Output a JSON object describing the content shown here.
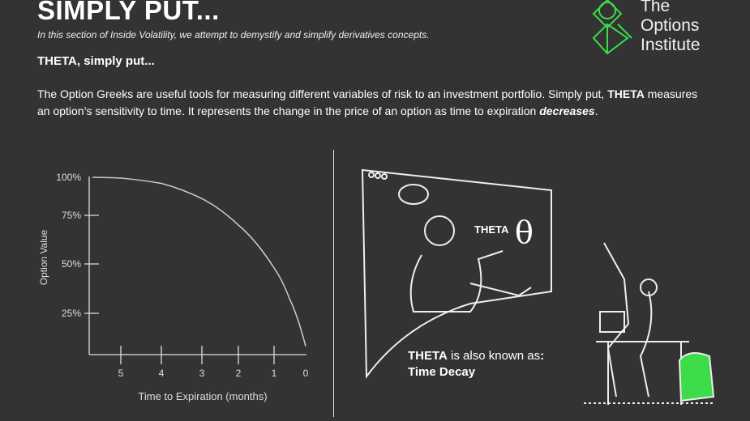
{
  "header": {
    "title": "SIMPLY PUT...",
    "subtitle": "In this section of Inside Volatility, we attempt to demystify and simplify derivatives concepts."
  },
  "logo": {
    "lines": [
      "The",
      "Options",
      "Institute"
    ],
    "color": "#3ddc4a"
  },
  "section": {
    "heading": "THETA, simply put...",
    "body_part1": "The Option Greeks are useful tools for measuring different variables of risk to an investment portfolio. Simply put, ",
    "body_bold": "THETA",
    "body_part2": " measures an option’s sensitivity to time. It represents the change in the price of an option as time to expiration ",
    "body_emph": "decreases",
    "body_end": "."
  },
  "illustration": {
    "board_label": "THETA",
    "symbol": "θ"
  },
  "aka": {
    "bold": "THETA",
    "text": " is also known as",
    "colon": ":",
    "term": "Time Decay"
  },
  "chart_data": {
    "type": "line",
    "title": "",
    "xlabel": "Time to Expiration (months)",
    "ylabel": "Option Value",
    "x_ticks": [
      "5",
      "4",
      "3",
      "2",
      "1",
      "0"
    ],
    "y_ticks": [
      "100%",
      "75%",
      "50%",
      "25%"
    ],
    "x_reversed": true,
    "grid": false,
    "series": [
      {
        "x": [
          5.7,
          5,
          4,
          3,
          2,
          1,
          0.5,
          0
        ],
        "y": [
          100,
          99.5,
          96,
          86,
          70,
          48,
          32,
          5
        ]
      }
    ]
  }
}
